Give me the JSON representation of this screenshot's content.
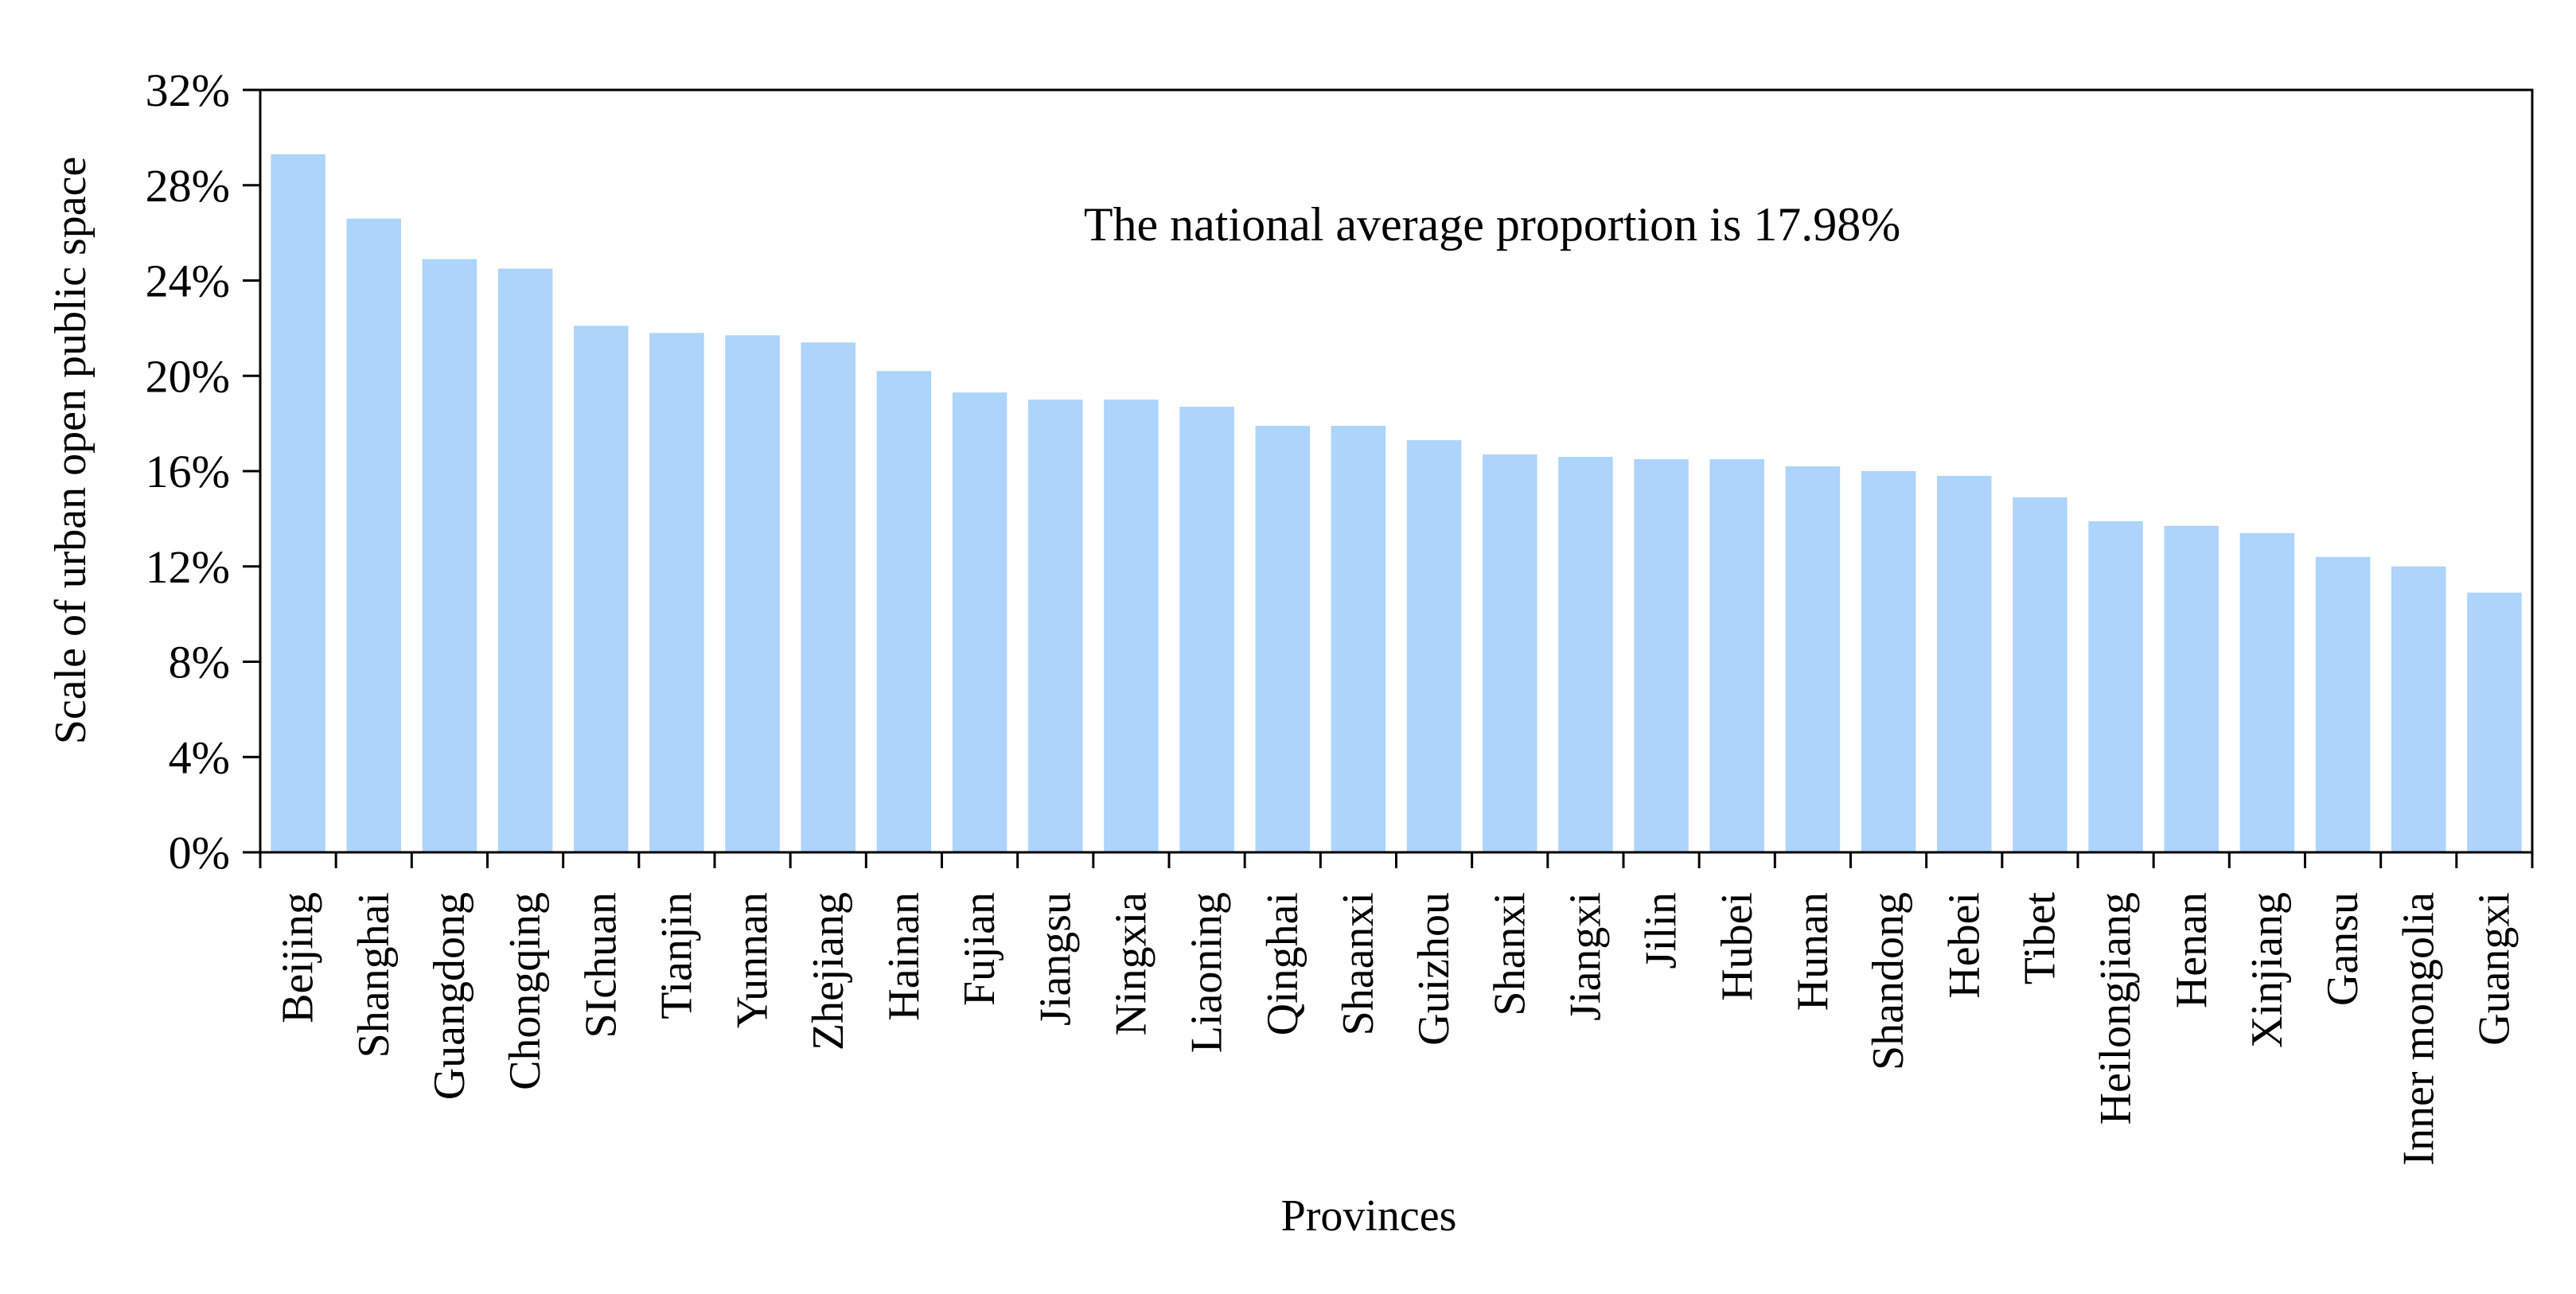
{
  "chart_data": {
    "type": "bar",
    "title": "",
    "annotation": "The national average proportion is 17.98%",
    "xlabel": "Provinces",
    "ylabel": "Scale of urban open public space",
    "ylim": [
      0,
      32
    ],
    "yticks": [
      0,
      4,
      8,
      12,
      16,
      20,
      24,
      28,
      32
    ],
    "ytick_labels": [
      "0%",
      "4%",
      "8%",
      "12%",
      "16%",
      "20%",
      "24%",
      "28%",
      "32%"
    ],
    "categories": [
      "Beijing",
      "Shanghai",
      "Guangdong",
      "Chongqing",
      "SIchuan",
      "Tianjin",
      "Yunnan",
      "Zhejiang",
      "Hainan",
      "Fujian",
      "Jiangsu",
      "Ningxia",
      "Liaoning",
      "Qinghai",
      "Shaanxi",
      "Guizhou",
      "Shanxi",
      "Jiangxi",
      "Jilin",
      "Hubei",
      "Hunan",
      "Shandong",
      "Hebei",
      "Tibet",
      "Heilongjiang",
      "Henan",
      "Xinjiang",
      "Gansu",
      "Inner mongolia",
      "Guangxi"
    ],
    "values": [
      29.3,
      26.6,
      24.9,
      24.5,
      22.1,
      21.8,
      21.7,
      21.4,
      20.2,
      19.3,
      19.0,
      19.0,
      18.7,
      17.9,
      17.9,
      17.3,
      16.7,
      16.6,
      16.5,
      16.5,
      16.2,
      16.0,
      15.8,
      14.9,
      13.9,
      13.7,
      13.4,
      12.4,
      12.0,
      10.9
    ],
    "bar_color": "#add4fb",
    "grid": false,
    "legend": "none"
  }
}
